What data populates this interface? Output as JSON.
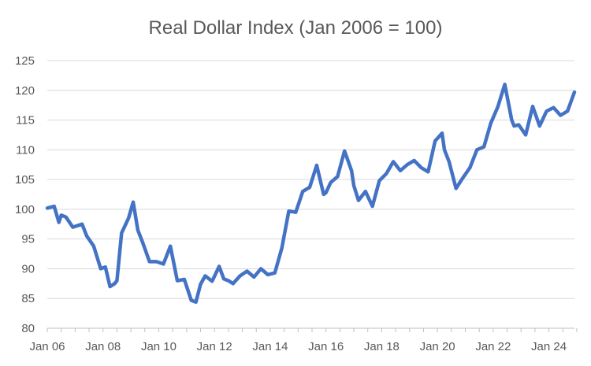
{
  "chart_data": {
    "type": "line",
    "title": "Real Dollar Index (Jan 2006 = 100)",
    "xlabel": "",
    "ylabel": "",
    "ylim": [
      80,
      125
    ],
    "y_ticks": [
      80,
      85,
      90,
      95,
      100,
      105,
      110,
      115,
      120,
      125
    ],
    "x_range": [
      "2006-01",
      "2024-12"
    ],
    "x_tick_labels": [
      "Jan 06",
      "Jan 08",
      "Jan 10",
      "Jan 12",
      "Jan 14",
      "Jan 16",
      "Jan 18",
      "Jan 20",
      "Jan 22",
      "Jan 24"
    ],
    "x_tick_dates": [
      "2006-01",
      "2008-01",
      "2010-01",
      "2012-01",
      "2014-01",
      "2016-01",
      "2018-01",
      "2020-01",
      "2022-01",
      "2024-01"
    ],
    "grid": "horizontal",
    "legend": "none",
    "color": "#4472c4",
    "series": [
      {
        "x": [
          "2006-01",
          "2006-04",
          "2006-06",
          "2006-07",
          "2006-09",
          "2006-12",
          "2007-04",
          "2007-06",
          "2007-09",
          "2007-12",
          "2008-02",
          "2008-04",
          "2008-06",
          "2008-07",
          "2008-09",
          "2008-12",
          "2009-02",
          "2009-04",
          "2009-06",
          "2009-09",
          "2009-12",
          "2010-03",
          "2010-06",
          "2010-09",
          "2010-12",
          "2011-03",
          "2011-05",
          "2011-07",
          "2011-09",
          "2011-12",
          "2012-03",
          "2012-05",
          "2012-07",
          "2012-09",
          "2012-12",
          "2013-03",
          "2013-06",
          "2013-09",
          "2013-12",
          "2014-03",
          "2014-06",
          "2014-09",
          "2014-12",
          "2015-03",
          "2015-06",
          "2015-09",
          "2015-12",
          "2016-01",
          "2016-03",
          "2016-06",
          "2016-09",
          "2016-12",
          "2017-01",
          "2017-03",
          "2017-06",
          "2017-09",
          "2017-12",
          "2018-03",
          "2018-06",
          "2018-09",
          "2018-12",
          "2019-03",
          "2019-06",
          "2019-09",
          "2019-12",
          "2020-03",
          "2020-04",
          "2020-06",
          "2020-09",
          "2020-12",
          "2021-03",
          "2021-06",
          "2021-09",
          "2021-12",
          "2022-03",
          "2022-06",
          "2022-09",
          "2022-10",
          "2022-12",
          "2023-03",
          "2023-06",
          "2023-09",
          "2023-12",
          "2024-03",
          "2024-06",
          "2024-09",
          "2024-12"
        ],
        "y": [
          100.2,
          100.5,
          97.8,
          99.0,
          98.7,
          97.0,
          97.5,
          95.5,
          93.8,
          90.0,
          90.3,
          87.0,
          87.5,
          88.0,
          96.0,
          98.5,
          101.2,
          96.5,
          94.5,
          91.2,
          91.2,
          90.8,
          93.8,
          88.0,
          88.2,
          84.7,
          84.4,
          87.4,
          88.8,
          87.9,
          90.4,
          88.3,
          88.0,
          87.5,
          88.8,
          89.6,
          88.6,
          90.0,
          89.0,
          89.3,
          93.5,
          99.7,
          99.5,
          103.0,
          103.7,
          107.4,
          102.5,
          102.8,
          104.5,
          105.5,
          109.8,
          106.5,
          104.0,
          101.5,
          103.0,
          100.5,
          104.8,
          106.0,
          108.0,
          106.5,
          107.5,
          108.2,
          107.0,
          106.3,
          111.5,
          112.8,
          110.0,
          108.0,
          103.5,
          105.3,
          107.0,
          110.0,
          110.5,
          114.5,
          117.2,
          121.0,
          115.0,
          114.0,
          114.2,
          112.5,
          117.3,
          114.0,
          116.5,
          117.1,
          115.8,
          116.5,
          119.7
        ]
      }
    ]
  }
}
